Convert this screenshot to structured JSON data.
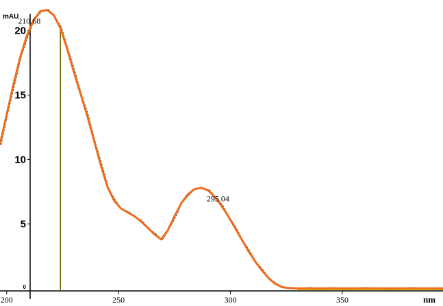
{
  "chart_data": {
    "type": "line",
    "xlabel": "nm",
    "ylabel": "mAU",
    "xlim": [
      197,
      395
    ],
    "ylim": [
      -0.2,
      22
    ],
    "x_ticks": [
      200,
      250,
      300,
      350
    ],
    "y_ticks": [
      5,
      10,
      15,
      20
    ],
    "y_zero_tick_label": "0",
    "grid": false,
    "colors": {
      "spectrum": "#f26b1d",
      "overlay": "#2a5a2a",
      "marker": "#6b6b00",
      "baseline_tail": "#c8c800",
      "axis": "#000000"
    },
    "series": [
      {
        "x": [
          197,
          200,
          203,
          206,
          209,
          212,
          215,
          218,
          221,
          224,
          227,
          230,
          233,
          236,
          239,
          242,
          245,
          248,
          251,
          254,
          257,
          260,
          263,
          266,
          269,
          272,
          275,
          278,
          281,
          284,
          287,
          290,
          293,
          296,
          299,
          302,
          305,
          308,
          311,
          314,
          317,
          320,
          323,
          326,
          330,
          335,
          340,
          345,
          350,
          360,
          370,
          380,
          395
        ],
        "values": [
          11.2,
          13.5,
          15.8,
          17.9,
          19.6,
          20.8,
          21.5,
          21.6,
          21.2,
          20.2,
          18.6,
          16.8,
          15.1,
          13.4,
          11.5,
          9.6,
          7.9,
          6.8,
          6.2,
          5.9,
          5.6,
          5.2,
          4.7,
          4.2,
          3.8,
          4.5,
          5.6,
          6.6,
          7.3,
          7.7,
          7.8,
          7.6,
          7.1,
          6.4,
          5.6,
          4.7,
          3.8,
          2.9,
          2.1,
          1.4,
          0.8,
          0.35,
          0.1,
          0.02,
          0.0,
          0.0,
          0.0,
          0.0,
          0.0,
          0.0,
          0.0,
          0.0,
          0.0
        ]
      }
    ],
    "marker_x": 224,
    "annotations": [
      {
        "text": "210.68",
        "x": 210.68,
        "y": 21.6
      },
      {
        "text": "295.04",
        "x": 295.04,
        "y": 7.8
      }
    ]
  }
}
